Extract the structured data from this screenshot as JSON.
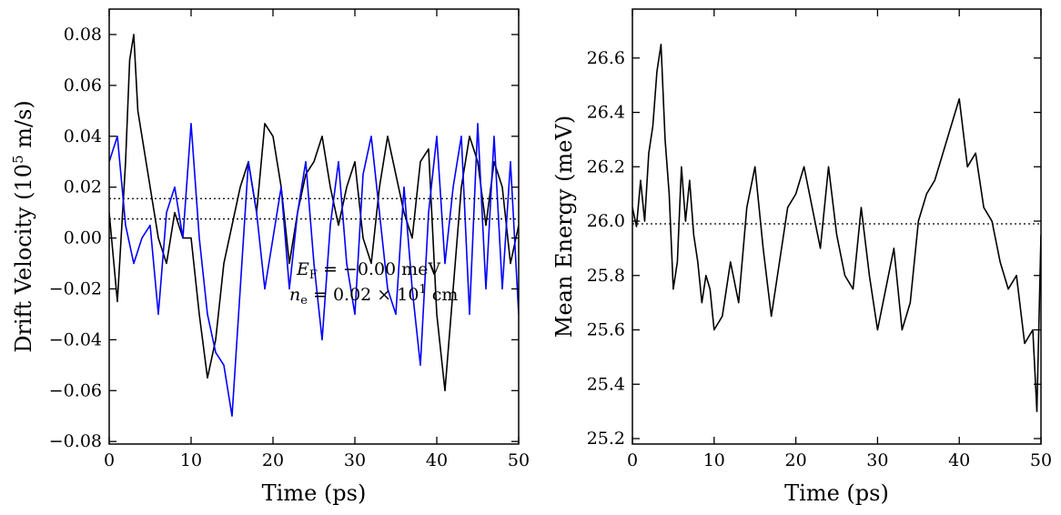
{
  "chart_data": [
    {
      "type": "line",
      "xlabel": "Time (ps)",
      "ylabel": "Drift Velocity (10",
      "ylabel_sup": "5",
      "ylabel_tail": " m/s)",
      "xlim": [
        0,
        50
      ],
      "ylim": [
        -0.081,
        0.09
      ],
      "xticks": [
        0,
        10,
        20,
        30,
        40,
        50
      ],
      "xtick_labels": [
        "0",
        "10",
        "20",
        "30",
        "40",
        "50"
      ],
      "yticks": [
        -0.08,
        -0.06,
        -0.04,
        -0.02,
        0.0,
        0.02,
        0.04,
        0.06,
        0.08
      ],
      "ytick_labels": [
        "−0.08",
        "−0.06",
        "−0.04",
        "−0.02",
        "0.00",
        "0.02",
        "0.04",
        "0.06",
        "0.08"
      ],
      "grid": false,
      "annotations": [
        {
          "text": "E",
          "sub": "F",
          "tail": " = −0.00 meV"
        },
        {
          "text": "n",
          "sub": "e",
          "tail": " = 0.02 × 10",
          "sup": "1",
          "tail2": " cm"
        }
      ],
      "reference_lines": [
        0.0155,
        0.0075
      ],
      "series": [
        {
          "color": "#000000",
          "x": [
            0,
            1,
            2,
            2.5,
            3,
            3.5,
            4,
            5,
            6,
            7,
            8,
            9,
            10,
            11,
            12,
            13,
            14,
            15,
            16,
            17,
            18,
            19,
            20,
            21,
            22,
            23,
            24,
            25,
            26,
            27,
            28,
            29,
            30,
            31,
            32,
            33,
            34,
            35,
            36,
            37,
            38,
            39,
            40,
            41,
            42,
            43,
            44,
            45,
            46,
            47,
            48,
            49,
            50
          ],
          "y": [
            0.01,
            -0.025,
            0.03,
            0.07,
            0.08,
            0.05,
            0.04,
            0.02,
            0.0,
            -0.01,
            0.01,
            0.0,
            0.0,
            -0.03,
            -0.055,
            -0.04,
            -0.01,
            0.005,
            0.02,
            0.03,
            0.01,
            0.045,
            0.04,
            0.02,
            -0.01,
            0.01,
            0.025,
            0.03,
            0.04,
            0.02,
            0.005,
            0.02,
            0.03,
            0.0,
            -0.01,
            0.02,
            0.04,
            0.025,
            0.01,
            0.0,
            0.03,
            0.035,
            -0.03,
            -0.06,
            -0.02,
            0.02,
            0.04,
            0.03,
            0.005,
            0.03,
            0.02,
            -0.01,
            0.005
          ]
        },
        {
          "color": "#0000ff",
          "x": [
            0,
            1,
            2,
            3,
            4,
            5,
            6,
            7,
            8,
            9,
            10,
            11,
            12,
            13,
            14,
            15,
            16,
            17,
            18,
            19,
            20,
            21,
            22,
            23,
            24,
            25,
            26,
            27,
            28,
            29,
            30,
            31,
            32,
            33,
            34,
            35,
            36,
            37,
            38,
            39,
            40,
            41,
            42,
            43,
            44,
            45,
            46,
            47,
            48,
            49,
            50
          ],
          "y": [
            0.03,
            0.04,
            0.005,
            -0.01,
            0.0,
            0.005,
            -0.03,
            0.01,
            0.02,
            0.0,
            0.045,
            0.0,
            -0.03,
            -0.045,
            -0.05,
            -0.07,
            -0.02,
            0.03,
            0.01,
            -0.02,
            0.0,
            0.02,
            -0.02,
            0.01,
            0.03,
            -0.01,
            -0.04,
            0.005,
            0.03,
            -0.01,
            -0.03,
            0.025,
            0.04,
            0.01,
            -0.02,
            -0.03,
            0.02,
            -0.02,
            -0.05,
            0.01,
            0.04,
            -0.01,
            0.02,
            0.04,
            -0.03,
            0.045,
            -0.02,
            0.04,
            -0.02,
            0.03,
            -0.03
          ]
        }
      ]
    },
    {
      "type": "line",
      "xlabel": "Time (ps)",
      "ylabel": "Mean Energy (meV)",
      "xlim": [
        0,
        50
      ],
      "ylim": [
        25.18,
        26.78
      ],
      "xticks": [
        0,
        10,
        20,
        30,
        40,
        50
      ],
      "xtick_labels": [
        "0",
        "10",
        "20",
        "30",
        "40",
        "50"
      ],
      "yticks": [
        25.2,
        25.4,
        25.6,
        25.8,
        26.0,
        26.2,
        26.4,
        26.6
      ],
      "ytick_labels": [
        "25.2",
        "25.4",
        "25.6",
        "25.8",
        "26.0",
        "26.2",
        "26.4",
        "26.6"
      ],
      "grid": false,
      "reference_lines": [
        25.99
      ],
      "series": [
        {
          "color": "#000000",
          "x": [
            0,
            0.5,
            1,
            1.5,
            2,
            2.5,
            3,
            3.5,
            4,
            4.5,
            5,
            5.5,
            6,
            6.5,
            7,
            7.5,
            8,
            8.5,
            9,
            9.5,
            10,
            11,
            12,
            13,
            14,
            15,
            16,
            17,
            18,
            19,
            20,
            21,
            22,
            23,
            24,
            25,
            26,
            27,
            28,
            29,
            30,
            31,
            32,
            33,
            34,
            35,
            36,
            37,
            38,
            39,
            40,
            41,
            42,
            43,
            44,
            45,
            46,
            47,
            48,
            49,
            49.5,
            50
          ],
          "y": [
            26.05,
            25.98,
            26.15,
            26.0,
            26.25,
            26.35,
            26.55,
            26.65,
            26.3,
            26.1,
            25.75,
            25.85,
            26.2,
            26.0,
            26.15,
            25.95,
            25.85,
            25.7,
            25.8,
            25.75,
            25.6,
            25.65,
            25.85,
            25.7,
            26.05,
            26.2,
            25.9,
            25.65,
            25.85,
            26.05,
            26.1,
            26.2,
            26.05,
            25.9,
            26.2,
            25.95,
            25.8,
            25.75,
            26.05,
            25.8,
            25.6,
            25.75,
            25.9,
            25.6,
            25.7,
            26.0,
            26.1,
            26.15,
            26.25,
            26.35,
            26.45,
            26.2,
            26.25,
            26.05,
            26.0,
            25.85,
            25.75,
            25.8,
            25.55,
            25.6,
            25.3,
            25.95
          ]
        }
      ]
    }
  ]
}
